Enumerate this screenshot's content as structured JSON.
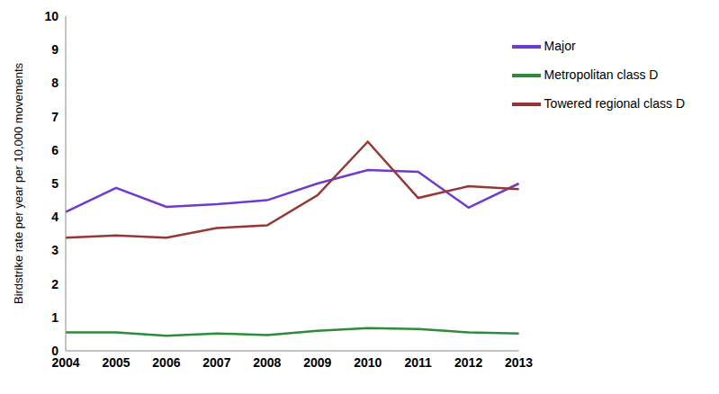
{
  "chart_data": {
    "type": "line",
    "y_label": "Birdstrike rate per year per 10,000 movements",
    "categories": [
      "2004",
      "2005",
      "2006",
      "2007",
      "2008",
      "2009",
      "2010",
      "2011",
      "2012",
      "2013"
    ],
    "series": [
      {
        "name": "Major",
        "color": "#6e3bd1",
        "values": [
          4.15,
          4.87,
          4.3,
          4.38,
          4.5,
          5.0,
          5.4,
          5.35,
          4.28,
          5.0
        ]
      },
      {
        "name": "Metropolitan class D",
        "color": "#2e8b3a",
        "values": [
          0.55,
          0.55,
          0.45,
          0.52,
          0.47,
          0.6,
          0.68,
          0.65,
          0.55,
          0.52
        ]
      },
      {
        "name": "Towered regional class D",
        "color": "#953735",
        "values": [
          3.38,
          3.45,
          3.38,
          3.67,
          3.75,
          4.65,
          6.25,
          4.57,
          4.92,
          4.83
        ]
      }
    ],
    "ylim": [
      0,
      10
    ],
    "yticks": [
      0,
      1,
      2,
      3,
      4,
      5,
      6,
      7,
      8,
      9,
      10
    ],
    "grid": false,
    "legend": "upper right"
  }
}
